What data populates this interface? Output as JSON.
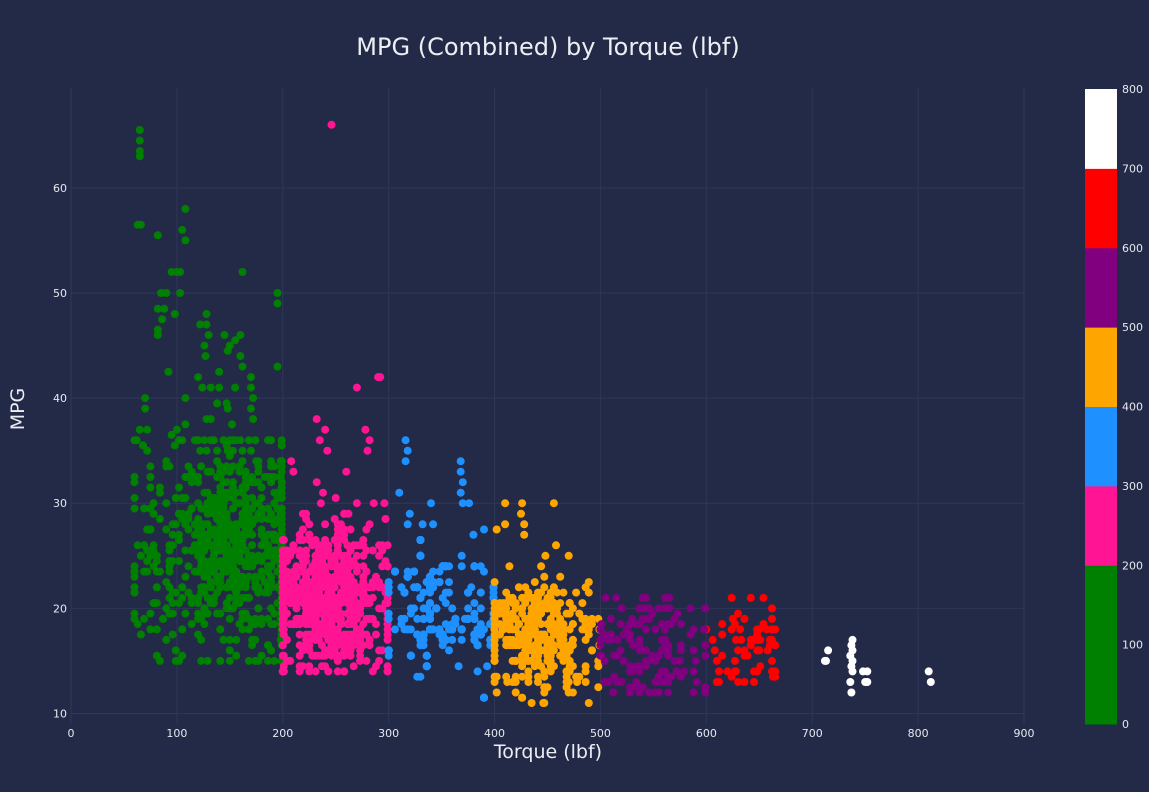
{
  "chart_data": {
    "type": "scatter",
    "title": "MPG (Combined) by Torque (lbf)",
    "xlabel": "Torque (lbf)",
    "ylabel": "MPG",
    "xlim": [
      0,
      900
    ],
    "ylim": [
      9,
      69.5
    ],
    "x_ticks": [
      0,
      100,
      200,
      300,
      400,
      500,
      600,
      700,
      800,
      900
    ],
    "y_ticks": [
      10,
      20,
      30,
      40,
      50,
      60
    ],
    "grid": true,
    "background": "#232a48",
    "colorbar": {
      "range": [
        0,
        800
      ],
      "ticks": [
        0,
        100,
        200,
        300,
        400,
        500,
        600,
        700,
        800
      ],
      "bands": [
        {
          "from": 0,
          "to": 200,
          "color": "#008000"
        },
        {
          "from": 200,
          "to": 300,
          "color": "#ff1493"
        },
        {
          "from": 300,
          "to": 400,
          "color": "#1e90ff"
        },
        {
          "from": 400,
          "to": 500,
          "color": "#ffa500"
        },
        {
          "from": 500,
          "to": 600,
          "color": "#800080"
        },
        {
          "from": 600,
          "to": 700,
          "color": "#ff0000"
        },
        {
          "from": 700,
          "to": 800,
          "color": "#ffffff"
        }
      ]
    },
    "points": [
      [
        65,
        65.5
      ],
      [
        65,
        64.5
      ],
      [
        65,
        63.5
      ],
      [
        65,
        63
      ],
      [
        63,
        56.5
      ],
      [
        66,
        56.5
      ],
      [
        82,
        55.5
      ],
      [
        108,
        58
      ],
      [
        105,
        56
      ],
      [
        108,
        55
      ],
      [
        95,
        52
      ],
      [
        100,
        52
      ],
      [
        103,
        52
      ],
      [
        162,
        52
      ],
      [
        85,
        50
      ],
      [
        90,
        50
      ],
      [
        103,
        50
      ],
      [
        82,
        48.5
      ],
      [
        88,
        48.5
      ],
      [
        98,
        48
      ],
      [
        86,
        47.5
      ],
      [
        82,
        46.5
      ],
      [
        82,
        46
      ],
      [
        122,
        47
      ],
      [
        128,
        47
      ],
      [
        128,
        48
      ],
      [
        130,
        46
      ],
      [
        126,
        45
      ],
      [
        145,
        46
      ],
      [
        155,
        45.5
      ],
      [
        150,
        45
      ],
      [
        160,
        46
      ],
      [
        127,
        44
      ],
      [
        148,
        44.5
      ],
      [
        160,
        44
      ],
      [
        162,
        43
      ],
      [
        140,
        42.5
      ],
      [
        92,
        42.5
      ],
      [
        70,
        40
      ],
      [
        70,
        39
      ],
      [
        108,
        40
      ],
      [
        120,
        42
      ],
      [
        124,
        41
      ],
      [
        132,
        41
      ],
      [
        140,
        41
      ],
      [
        138,
        39.5
      ],
      [
        148,
        39
      ],
      [
        155,
        41
      ],
      [
        170,
        42
      ],
      [
        170,
        41
      ],
      [
        172,
        40
      ],
      [
        170,
        39
      ],
      [
        172,
        38
      ],
      [
        147,
        39.5
      ],
      [
        128,
        38
      ],
      [
        132,
        38
      ],
      [
        152,
        37.5
      ],
      [
        108,
        37.5
      ],
      [
        65,
        37
      ],
      [
        72,
        37
      ],
      [
        62,
        36
      ],
      [
        68,
        35.5
      ],
      [
        72,
        35
      ],
      [
        95,
        36.5
      ],
      [
        98,
        35.5
      ],
      [
        100,
        37
      ],
      [
        105,
        36
      ],
      [
        118,
        36
      ],
      [
        122,
        35
      ],
      [
        128,
        35
      ],
      [
        148,
        35
      ],
      [
        152,
        36
      ],
      [
        160,
        36
      ],
      [
        168,
        36
      ],
      [
        195,
        43
      ],
      [
        195,
        49
      ],
      [
        195,
        50
      ],
      [
        170,
        35
      ],
      [
        175,
        34
      ],
      [
        208,
        34
      ],
      [
        210,
        33
      ],
      [
        232,
        38
      ],
      [
        240,
        37
      ],
      [
        235,
        36
      ],
      [
        242,
        35
      ],
      [
        260,
        33
      ],
      [
        270,
        41
      ],
      [
        278,
        37
      ],
      [
        282,
        36
      ],
      [
        280,
        35
      ],
      [
        290,
        42
      ],
      [
        292,
        42
      ],
      [
        246,
        66
      ],
      [
        232,
        32
      ],
      [
        238,
        31
      ],
      [
        236,
        30
      ],
      [
        250,
        30.5
      ],
      [
        262,
        29
      ],
      [
        270,
        30
      ],
      [
        286,
        30
      ],
      [
        296,
        30
      ],
      [
        316,
        36
      ],
      [
        318,
        35
      ],
      [
        316,
        34
      ],
      [
        310,
        31
      ],
      [
        320,
        29
      ],
      [
        318,
        28
      ],
      [
        332,
        28
      ],
      [
        342,
        28
      ],
      [
        340,
        30
      ],
      [
        368,
        34
      ],
      [
        368,
        33
      ],
      [
        370,
        32
      ],
      [
        368,
        31
      ],
      [
        370,
        30
      ],
      [
        376,
        30
      ],
      [
        380,
        27
      ],
      [
        390,
        27.5
      ],
      [
        410,
        30
      ],
      [
        426,
        30
      ],
      [
        425,
        29
      ],
      [
        428,
        28
      ],
      [
        428,
        27
      ],
      [
        402,
        27.5
      ],
      [
        410,
        28
      ],
      [
        444,
        24
      ],
      [
        448,
        25
      ],
      [
        456,
        30
      ],
      [
        458,
        26
      ],
      [
        470,
        25
      ],
      [
        715,
        16
      ],
      [
        712,
        15
      ],
      [
        713,
        15
      ],
      [
        738,
        17
      ],
      [
        737,
        16.5
      ],
      [
        738,
        16
      ],
      [
        736,
        15.5
      ],
      [
        738,
        15
      ],
      [
        737,
        14.5
      ],
      [
        738,
        14
      ],
      [
        736,
        13
      ],
      [
        737,
        12
      ],
      [
        748,
        14
      ],
      [
        752,
        14
      ],
      [
        750,
        13
      ],
      [
        752,
        13
      ],
      [
        810,
        14
      ],
      [
        812,
        13
      ],
      [
        624,
        21
      ],
      [
        625,
        19
      ],
      [
        632,
        18
      ],
      [
        624,
        18
      ],
      [
        628,
        17
      ],
      [
        630,
        16
      ],
      [
        650,
        18
      ],
      [
        648,
        17
      ],
      [
        650,
        16
      ],
      [
        658,
        16
      ],
      [
        662,
        20
      ],
      [
        662,
        19
      ],
      [
        662,
        18
      ],
      [
        662,
        17
      ],
      [
        662,
        15
      ],
      [
        662,
        14
      ],
      [
        600,
        18
      ],
      [
        606,
        17
      ],
      [
        608,
        16
      ],
      [
        610,
        15
      ],
      [
        612,
        14
      ],
      [
        610,
        13
      ],
      [
        620,
        14
      ],
      [
        628,
        14
      ],
      [
        645,
        13
      ],
      [
        505,
        21
      ],
      [
        515,
        21
      ],
      [
        510,
        19
      ],
      [
        520,
        20
      ],
      [
        530,
        19
      ],
      [
        540,
        19
      ],
      [
        555,
        20
      ],
      [
        565,
        20
      ],
      [
        565,
        21
      ],
      [
        585,
        20
      ],
      [
        588,
        18
      ],
      [
        598,
        18
      ],
      [
        512,
        12
      ],
      [
        508,
        13
      ],
      [
        520,
        13
      ],
      [
        530,
        14
      ],
      [
        545,
        15
      ],
      [
        555,
        12
      ],
      [
        560,
        13
      ],
      [
        572,
        14
      ],
      [
        575,
        15
      ],
      [
        588,
        16
      ],
      [
        590,
        15
      ],
      [
        470,
        13
      ],
      [
        470,
        12
      ],
      [
        478,
        13
      ],
      [
        446,
        11
      ],
      [
        432,
        13
      ],
      [
        420,
        12
      ],
      [
        412,
        13
      ]
    ],
    "clusters": [
      {
        "cx": 150,
        "cy": 26,
        "sx": 40,
        "sy": 5,
        "n": 700,
        "seed": 11,
        "xmin": 60,
        "xmax": 199,
        "ymin": 15,
        "ymax": 36
      },
      {
        "cx": 245,
        "cy": 21,
        "sx": 28,
        "sy": 3.5,
        "n": 650,
        "seed": 23,
        "xmin": 200,
        "xmax": 299,
        "ymin": 14,
        "ymax": 32
      },
      {
        "cx": 345,
        "cy": 18.5,
        "sx": 30,
        "sy": 3,
        "n": 520,
        "seed": 37,
        "xmin": 300,
        "xmax": 399,
        "ymin": 11.5,
        "ymax": 27
      },
      {
        "cx": 440,
        "cy": 17.5,
        "sx": 28,
        "sy": 2.6,
        "n": 330,
        "seed": 41,
        "xmin": 400,
        "xmax": 499,
        "ymin": 11,
        "ymax": 24
      },
      {
        "cx": 545,
        "cy": 16,
        "sx": 30,
        "sy": 2.5,
        "n": 120,
        "seed": 53,
        "xmin": 500,
        "xmax": 599,
        "ymin": 12,
        "ymax": 21
      },
      {
        "cx": 640,
        "cy": 16.5,
        "sx": 18,
        "sy": 2.2,
        "n": 40,
        "seed": 67,
        "xmin": 600,
        "xmax": 665,
        "ymin": 13,
        "ymax": 21
      }
    ]
  }
}
